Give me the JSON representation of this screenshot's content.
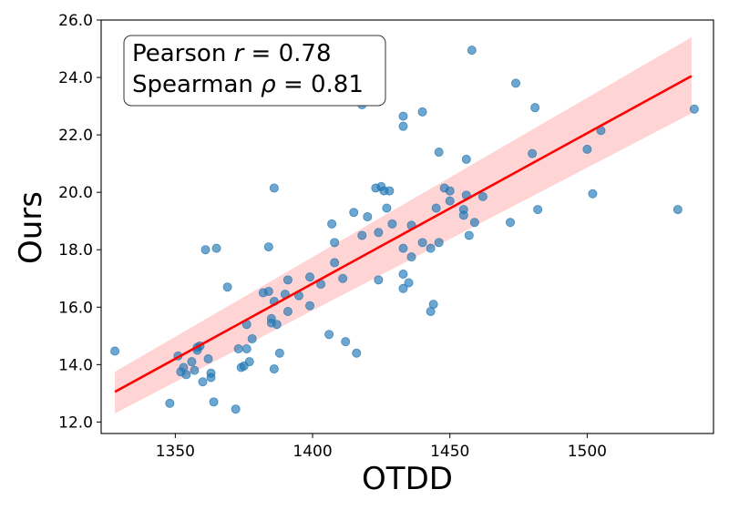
{
  "chart_data": {
    "type": "scatter",
    "title": "",
    "xlabel": "OTDD",
    "ylabel": "Ours",
    "xlim": [
      1323,
      1546
    ],
    "ylim": [
      11.6,
      26.0
    ],
    "xticks": [
      1350,
      1400,
      1450,
      1500
    ],
    "xtick_labels": [
      "1350",
      "1400",
      "1450",
      "1500"
    ],
    "yticks": [
      12,
      14,
      16,
      18,
      20,
      22,
      24,
      26
    ],
    "ytick_labels": [
      "12.0",
      "14.0",
      "16.0",
      "18.0",
      "20.0",
      "22.0",
      "24.0",
      "26.0"
    ],
    "grid": false,
    "annotation": {
      "line1": "Pearson r = 0.78",
      "line2": "Spearman ρ = 0.81",
      "pearson_label": "Pearson ",
      "pearson_symbol": "r",
      "pearson_value": " = 0.78",
      "spearman_label": "Spearman ",
      "spearman_symbol": "ρ",
      "spearman_value": " = 0.81",
      "placement": "top-left"
    },
    "regression": {
      "x": [
        1328,
        1538
      ],
      "y": [
        13.05,
        24.05
      ],
      "ci_upper": [
        13.75,
        25.4
      ],
      "ci_lower": [
        12.3,
        22.75
      ],
      "color": "#ff0000",
      "ci_color": "#ffcccc"
    },
    "point_color": "#1f77b4",
    "points": [
      [
        1328,
        14.47
      ],
      [
        1348,
        12.65
      ],
      [
        1351,
        14.3
      ],
      [
        1352,
        13.75
      ],
      [
        1353,
        13.9
      ],
      [
        1354,
        13.65
      ],
      [
        1356,
        14.1
      ],
      [
        1357,
        13.8
      ],
      [
        1358,
        14.5
      ],
      [
        1358,
        14.6
      ],
      [
        1359,
        14.65
      ],
      [
        1360,
        13.4
      ],
      [
        1361,
        18.0
      ],
      [
        1362,
        14.2
      ],
      [
        1363,
        13.7
      ],
      [
        1363,
        13.55
      ],
      [
        1364,
        12.7
      ],
      [
        1365,
        18.05
      ],
      [
        1369,
        16.7
      ],
      [
        1372,
        12.45
      ],
      [
        1373,
        14.55
      ],
      [
        1374,
        13.9
      ],
      [
        1375,
        13.95
      ],
      [
        1376,
        15.4
      ],
      [
        1376,
        14.55
      ],
      [
        1377,
        14.1
      ],
      [
        1378,
        14.9
      ],
      [
        1382,
        16.5
      ],
      [
        1384,
        16.55
      ],
      [
        1384,
        18.1
      ],
      [
        1385,
        15.6
      ],
      [
        1385,
        15.45
      ],
      [
        1386,
        13.85
      ],
      [
        1386,
        20.15
      ],
      [
        1386,
        16.2
      ],
      [
        1387,
        15.4
      ],
      [
        1388,
        14.4
      ],
      [
        1390,
        16.45
      ],
      [
        1391,
        15.85
      ],
      [
        1391,
        16.95
      ],
      [
        1395,
        16.4
      ],
      [
        1399,
        16.05
      ],
      [
        1399,
        17.05
      ],
      [
        1403,
        16.8
      ],
      [
        1406,
        15.05
      ],
      [
        1407,
        18.9
      ],
      [
        1408,
        17.55
      ],
      [
        1408,
        18.25
      ],
      [
        1411,
        17.0
      ],
      [
        1412,
        14.8
      ],
      [
        1415,
        19.3
      ],
      [
        1416,
        14.4
      ],
      [
        1418,
        18.5
      ],
      [
        1418,
        23.05
      ],
      [
        1420,
        19.15
      ],
      [
        1423,
        20.15
      ],
      [
        1424,
        18.6
      ],
      [
        1424,
        16.95
      ],
      [
        1425,
        20.2
      ],
      [
        1426,
        20.05
      ],
      [
        1427,
        19.45
      ],
      [
        1428,
        20.05
      ],
      [
        1429,
        18.9
      ],
      [
        1433,
        22.3
      ],
      [
        1433,
        22.65
      ],
      [
        1433,
        18.05
      ],
      [
        1433,
        17.15
      ],
      [
        1433,
        16.65
      ],
      [
        1435,
        16.85
      ],
      [
        1436,
        17.75
      ],
      [
        1436,
        18.85
      ],
      [
        1440,
        18.25
      ],
      [
        1440,
        22.8
      ],
      [
        1443,
        18.05
      ],
      [
        1443,
        15.85
      ],
      [
        1444,
        16.1
      ],
      [
        1445,
        19.45
      ],
      [
        1446,
        21.4
      ],
      [
        1446,
        18.25
      ],
      [
        1448,
        20.15
      ],
      [
        1450,
        20.05
      ],
      [
        1450,
        19.7
      ],
      [
        1455,
        19.4
      ],
      [
        1455,
        19.2
      ],
      [
        1456,
        21.15
      ],
      [
        1456,
        19.9
      ],
      [
        1457,
        18.5
      ],
      [
        1458,
        24.95
      ],
      [
        1459,
        18.95
      ],
      [
        1462,
        19.85
      ],
      [
        1472,
        18.95
      ],
      [
        1474,
        23.8
      ],
      [
        1480,
        21.35
      ],
      [
        1481,
        22.95
      ],
      [
        1482,
        19.4
      ],
      [
        1500,
        21.5
      ],
      [
        1502,
        19.95
      ],
      [
        1505,
        22.15
      ],
      [
        1533,
        19.4
      ],
      [
        1539,
        22.9
      ]
    ]
  }
}
